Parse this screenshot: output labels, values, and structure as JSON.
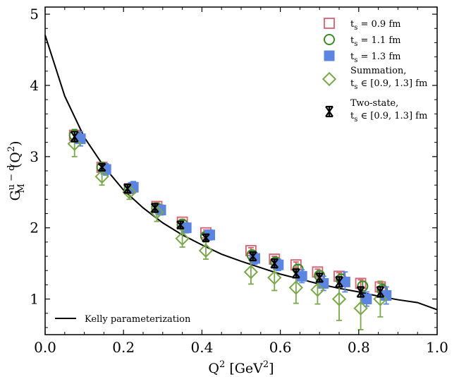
{
  "chart_data": {
    "type": "scatter",
    "xlabel_base": "Q",
    "xlabel_sup": "2",
    "xlabel_units": "[GeV",
    "xlabel_units_sup": "2",
    "xlabel_close": "]",
    "ylabel_base": "G",
    "ylabel_sub": "M",
    "ylabel_sup": "u − d",
    "ylabel_paren": "(Q",
    "ylabel_paren_sup": "2",
    "ylabel_close": ")",
    "xlim": [
      0.0,
      1.0
    ],
    "ylim": [
      0.5,
      5.1
    ],
    "xticks": [
      "0.0",
      "0.2",
      "0.4",
      "0.6",
      "0.8",
      "1.0"
    ],
    "yticks": [
      "1",
      "2",
      "3",
      "4",
      "5"
    ],
    "grid": false,
    "legend_position": "top-right",
    "series": [
      {
        "name": "t_s = 0.9 fm",
        "name_main": "t",
        "name_sub": "s",
        "name_rest": " = 0.9 fm",
        "marker": "square-open",
        "color": "#d9606e",
        "x": [
          0.075,
          0.145,
          0.215,
          0.285,
          0.35,
          0.41,
          0.525,
          0.585,
          0.64,
          0.695,
          0.75,
          0.805,
          0.855
        ],
        "y": [
          3.3,
          2.85,
          2.55,
          2.3,
          2.08,
          1.93,
          1.68,
          1.56,
          1.48,
          1.38,
          1.32,
          1.22,
          1.17
        ],
        "err": [
          0.06,
          0.05,
          0.05,
          0.04,
          0.04,
          0.04,
          0.04,
          0.04,
          0.04,
          0.04,
          0.05,
          0.05,
          0.05
        ]
      },
      {
        "name": "t_s = 1.1 fm",
        "name_main": "t",
        "name_sub": "s",
        "name_rest": " = 1.1 fm",
        "marker": "circle-open",
        "color": "#3b8a28",
        "x": [
          0.075,
          0.145,
          0.215,
          0.285,
          0.35,
          0.41,
          0.528,
          0.588,
          0.645,
          0.7,
          0.755,
          0.81,
          0.86
        ],
        "y": [
          3.3,
          2.85,
          2.55,
          2.28,
          2.05,
          1.88,
          1.62,
          1.52,
          1.42,
          1.33,
          1.28,
          1.18,
          1.13
        ],
        "err": [
          0.08,
          0.06,
          0.06,
          0.05,
          0.05,
          0.05,
          0.05,
          0.05,
          0.06,
          0.06,
          0.07,
          0.07,
          0.08
        ]
      },
      {
        "name": "t_s = 1.3 fm",
        "name_main": "t",
        "name_sub": "s",
        "name_rest": " = 1.3 fm",
        "marker": "square-filled",
        "color": "#5b85e0",
        "x": [
          0.09,
          0.155,
          0.225,
          0.295,
          0.36,
          0.42,
          0.535,
          0.595,
          0.655,
          0.71,
          0.765,
          0.82,
          0.87
        ],
        "y": [
          3.25,
          2.82,
          2.57,
          2.25,
          2.0,
          1.9,
          1.57,
          1.48,
          1.32,
          1.22,
          1.24,
          1.0,
          1.05
        ],
        "err": [
          0.1,
          0.08,
          0.08,
          0.07,
          0.07,
          0.07,
          0.08,
          0.08,
          0.09,
          0.1,
          0.14,
          0.1,
          0.12
        ]
      },
      {
        "name": "Summation, t_s ∈ [0.9, 1.3] fm",
        "name_line1": "Summation,",
        "name_main": "t",
        "name_sub": "s",
        "name_rest": " ∈ [0.9, 1.3] fm",
        "marker": "diamond-open",
        "color": "#7aa84a",
        "x": [
          0.075,
          0.145,
          0.215,
          0.285,
          0.35,
          0.41,
          0.525,
          0.585,
          0.64,
          0.695,
          0.75,
          0.805,
          0.855
        ],
        "y": [
          3.18,
          2.72,
          2.5,
          2.22,
          1.85,
          1.68,
          1.38,
          1.3,
          1.16,
          1.13,
          1.0,
          0.87,
          1.0
        ],
        "err": [
          0.18,
          0.12,
          0.1,
          0.13,
          0.12,
          0.12,
          0.17,
          0.18,
          0.22,
          0.2,
          0.3,
          0.3,
          0.25
        ]
      },
      {
        "name": "Two-state, t_s ∈ [0.9, 1.3] fm",
        "name_line1": "Two-state,",
        "name_main": "t",
        "name_sub": "s",
        "name_rest": " ∈ [0.9, 1.3] fm",
        "marker": "errorbar-only",
        "color": "#000000",
        "x": [
          0.075,
          0.145,
          0.21,
          0.28,
          0.345,
          0.41,
          0.53,
          0.585,
          0.64,
          0.7,
          0.75,
          0.805,
          0.855
        ],
        "y": [
          3.28,
          2.85,
          2.55,
          2.28,
          2.04,
          1.86,
          1.6,
          1.5,
          1.36,
          1.3,
          1.24,
          1.1,
          1.1
        ],
        "err": [
          0.07,
          0.05,
          0.06,
          0.06,
          0.05,
          0.05,
          0.06,
          0.06,
          0.06,
          0.06,
          0.07,
          0.07,
          0.07
        ]
      }
    ],
    "curve": {
      "name": "Kelly parameterization",
      "color": "#000000",
      "x": [
        0.0,
        0.05,
        0.1,
        0.15,
        0.2,
        0.25,
        0.3,
        0.35,
        0.4,
        0.45,
        0.5,
        0.55,
        0.6,
        0.65,
        0.7,
        0.75,
        0.8,
        0.85,
        0.9,
        0.95,
        1.0
      ],
      "y": [
        4.706,
        3.85,
        3.27,
        2.86,
        2.53,
        2.28,
        2.07,
        1.9,
        1.76,
        1.63,
        1.53,
        1.44,
        1.35,
        1.28,
        1.21,
        1.15,
        1.1,
        1.04,
        0.99,
        0.95,
        0.85
      ]
    }
  }
}
